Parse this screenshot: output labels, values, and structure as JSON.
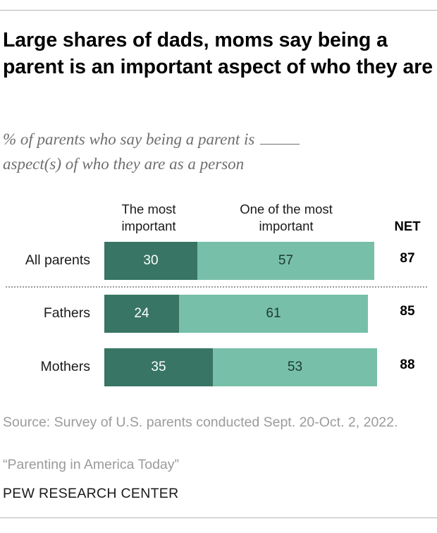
{
  "title": "Large shares of dads, moms say being a parent is an important aspect of who they are",
  "subtitle": "% of parents who say being a parent is",
  "subtitle_end": "aspect(s) of who they are as a person",
  "colors": {
    "most_important": "#387564",
    "one_of_most": "#77bfa9"
  },
  "chart_data": {
    "type": "bar",
    "orientation": "horizontal",
    "stacked": true,
    "categories": [
      "All parents",
      "Fathers",
      "Mothers"
    ],
    "series": [
      {
        "name": "The most important",
        "values": [
          30,
          24,
          35
        ]
      },
      {
        "name": "One of the most important",
        "values": [
          57,
          61,
          53
        ]
      }
    ],
    "net": {
      "label": "NET",
      "values": [
        87,
        85,
        88
      ]
    },
    "xlim": [
      0,
      100
    ]
  },
  "source": "Source: Survey of U.S. parents conducted Sept. 20-Oct. 2, 2022.",
  "report": "“Parenting in America Today”",
  "organization": "PEW RESEARCH CENTER"
}
